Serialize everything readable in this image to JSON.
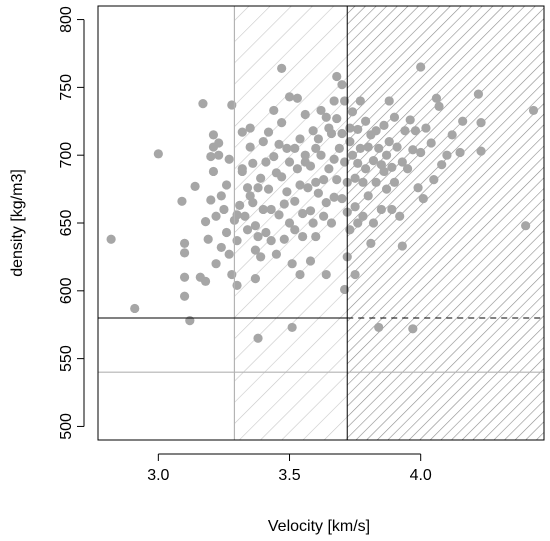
{
  "chart_data": {
    "type": "scatter",
    "xlabel": "Velocity [km/s]",
    "ylabel": "density  [kg/m3]",
    "xlim": [
      2.77,
      4.47
    ],
    "ylim": [
      490,
      810
    ],
    "x_ticks": [
      3.0,
      3.5,
      4.0
    ],
    "x_tick_labels": [
      "3.0",
      "3.5",
      "4.0"
    ],
    "y_ticks": [
      500,
      550,
      600,
      650,
      700,
      750,
      800
    ],
    "y_tick_labels": [
      "500",
      "550",
      "600",
      "650",
      "700",
      "750",
      "800"
    ],
    "thresholds": {
      "velocity_low": 3.29,
      "velocity_high": 3.72,
      "density_black": 580,
      "density_gray": 540
    },
    "colors": {
      "points": "#a6a6a6",
      "gray_line": "#b3b3b3",
      "hatch_light": "#c8c8c8",
      "hatch_dark": "#8c8c8c",
      "black": "#000000"
    },
    "points": [
      [
        2.82,
        638
      ],
      [
        2.91,
        587
      ],
      [
        3.0,
        701
      ],
      [
        3.09,
        666
      ],
      [
        3.1,
        610
      ],
      [
        3.1,
        596
      ],
      [
        3.1,
        635
      ],
      [
        3.1,
        628
      ],
      [
        3.12,
        578
      ],
      [
        3.14,
        677
      ],
      [
        3.16,
        610
      ],
      [
        3.17,
        738
      ],
      [
        3.18,
        607
      ],
      [
        3.18,
        651
      ],
      [
        3.19,
        638
      ],
      [
        3.2,
        667
      ],
      [
        3.2,
        699
      ],
      [
        3.21,
        706
      ],
      [
        3.21,
        715
      ],
      [
        3.21,
        688
      ],
      [
        3.22,
        655
      ],
      [
        3.22,
        620
      ],
      [
        3.23,
        709
      ],
      [
        3.23,
        700
      ],
      [
        3.24,
        670
      ],
      [
        3.24,
        632
      ],
      [
        3.25,
        660
      ],
      [
        3.26,
        678
      ],
      [
        3.26,
        643
      ],
      [
        3.27,
        627
      ],
      [
        3.27,
        697
      ],
      [
        3.28,
        737
      ],
      [
        3.28,
        612
      ],
      [
        3.29,
        652
      ],
      [
        3.3,
        604
      ],
      [
        3.3,
        637
      ],
      [
        3.3,
        656
      ],
      [
        3.31,
        663
      ],
      [
        3.32,
        690
      ],
      [
        3.32,
        717
      ],
      [
        3.32,
        688
      ],
      [
        3.33,
        655
      ],
      [
        3.34,
        676
      ],
      [
        3.34,
        645
      ],
      [
        3.35,
        720
      ],
      [
        3.35,
        706
      ],
      [
        3.35,
        670
      ],
      [
        3.36,
        694
      ],
      [
        3.36,
        665
      ],
      [
        3.37,
        609
      ],
      [
        3.37,
        630
      ],
      [
        3.37,
        648
      ],
      [
        3.38,
        676
      ],
      [
        3.38,
        640
      ],
      [
        3.38,
        565
      ],
      [
        3.39,
        683
      ],
      [
        3.39,
        625
      ],
      [
        3.4,
        710
      ],
      [
        3.4,
        660
      ],
      [
        3.41,
        695
      ],
      [
        3.41,
        643
      ],
      [
        3.42,
        675
      ],
      [
        3.42,
        717
      ],
      [
        3.43,
        637
      ],
      [
        3.43,
        660
      ],
      [
        3.44,
        733
      ],
      [
        3.44,
        699
      ],
      [
        3.45,
        687
      ],
      [
        3.45,
        627
      ],
      [
        3.46,
        708
      ],
      [
        3.46,
        656
      ],
      [
        3.47,
        764
      ],
      [
        3.47,
        724
      ],
      [
        3.47,
        684
      ],
      [
        3.48,
        638
      ],
      [
        3.48,
        664
      ],
      [
        3.49,
        705
      ],
      [
        3.49,
        673
      ],
      [
        3.5,
        743
      ],
      [
        3.5,
        695
      ],
      [
        3.5,
        650
      ],
      [
        3.51,
        573
      ],
      [
        3.51,
        620
      ],
      [
        3.52,
        705
      ],
      [
        3.52,
        666
      ],
      [
        3.52,
        645
      ],
      [
        3.53,
        742
      ],
      [
        3.53,
        690
      ],
      [
        3.54,
        712
      ],
      [
        3.54,
        678
      ],
      [
        3.54,
        612
      ],
      [
        3.55,
        657
      ],
      [
        3.55,
        640
      ],
      [
        3.56,
        695
      ],
      [
        3.56,
        730
      ],
      [
        3.56,
        700
      ],
      [
        3.57,
        676
      ],
      [
        3.58,
        659
      ],
      [
        3.58,
        692
      ],
      [
        3.58,
        622
      ],
      [
        3.59,
        718
      ],
      [
        3.59,
        650
      ],
      [
        3.6,
        705
      ],
      [
        3.6,
        680
      ],
      [
        3.6,
        640
      ],
      [
        3.61,
        712
      ],
      [
        3.61,
        672
      ],
      [
        3.62,
        733
      ],
      [
        3.62,
        700
      ],
      [
        3.63,
        655
      ],
      [
        3.63,
        682
      ],
      [
        3.64,
        728
      ],
      [
        3.64,
        665
      ],
      [
        3.64,
        612
      ],
      [
        3.65,
        720
      ],
      [
        3.65,
        690
      ],
      [
        3.66,
        716
      ],
      [
        3.66,
        650
      ],
      [
        3.67,
        740
      ],
      [
        3.67,
        697
      ],
      [
        3.67,
        669
      ],
      [
        3.68,
        758
      ],
      [
        3.68,
        727
      ],
      [
        3.68,
        682
      ],
      [
        3.69,
        705
      ],
      [
        3.7,
        668
      ],
      [
        3.7,
        752
      ],
      [
        3.7,
        716
      ],
      [
        3.71,
        740
      ],
      [
        3.71,
        695
      ],
      [
        3.71,
        601
      ],
      [
        3.72,
        625
      ],
      [
        3.72,
        658
      ],
      [
        3.72,
        680
      ],
      [
        3.73,
        710
      ],
      [
        3.73,
        720
      ],
      [
        3.73,
        645
      ],
      [
        3.74,
        700
      ],
      [
        3.74,
        732
      ],
      [
        3.75,
        612
      ],
      [
        3.75,
        662
      ],
      [
        3.75,
        683
      ],
      [
        3.76,
        719
      ],
      [
        3.76,
        694
      ],
      [
        3.76,
        650
      ],
      [
        3.77,
        740
      ],
      [
        3.77,
        705
      ],
      [
        3.78,
        680
      ],
      [
        3.78,
        655
      ],
      [
        3.79,
        725
      ],
      [
        3.79,
        690
      ],
      [
        3.8,
        706
      ],
      [
        3.8,
        670
      ],
      [
        3.81,
        635
      ],
      [
        3.81,
        715
      ],
      [
        3.82,
        696
      ],
      [
        3.82,
        650
      ],
      [
        3.83,
        680
      ],
      [
        3.83,
        718
      ],
      [
        3.84,
        573
      ],
      [
        3.84,
        705
      ],
      [
        3.85,
        660
      ],
      [
        3.85,
        693
      ],
      [
        3.86,
        688
      ],
      [
        3.86,
        722
      ],
      [
        3.87,
        700
      ],
      [
        3.87,
        675
      ],
      [
        3.88,
        740
      ],
      [
        3.88,
        710
      ],
      [
        3.89,
        660
      ],
      [
        3.89,
        691
      ],
      [
        3.9,
        728
      ],
      [
        3.9,
        680
      ],
      [
        3.91,
        706
      ],
      [
        3.92,
        655
      ],
      [
        3.93,
        695
      ],
      [
        3.93,
        633
      ],
      [
        3.94,
        718
      ],
      [
        3.95,
        690
      ],
      [
        3.96,
        726
      ],
      [
        3.97,
        572
      ],
      [
        3.97,
        704
      ],
      [
        3.98,
        718
      ],
      [
        3.99,
        676
      ],
      [
        4.0,
        765
      ],
      [
        4.0,
        702
      ],
      [
        4.01,
        668
      ],
      [
        4.02,
        720
      ],
      [
        4.04,
        709
      ],
      [
        4.05,
        682
      ],
      [
        4.06,
        742
      ],
      [
        4.07,
        736
      ],
      [
        4.08,
        693
      ],
      [
        4.1,
        700
      ],
      [
        4.12,
        715
      ],
      [
        4.15,
        702
      ],
      [
        4.16,
        725
      ],
      [
        4.22,
        745
      ],
      [
        4.23,
        703
      ],
      [
        4.23,
        724
      ],
      [
        4.4,
        648
      ],
      [
        4.43,
        733
      ]
    ]
  }
}
